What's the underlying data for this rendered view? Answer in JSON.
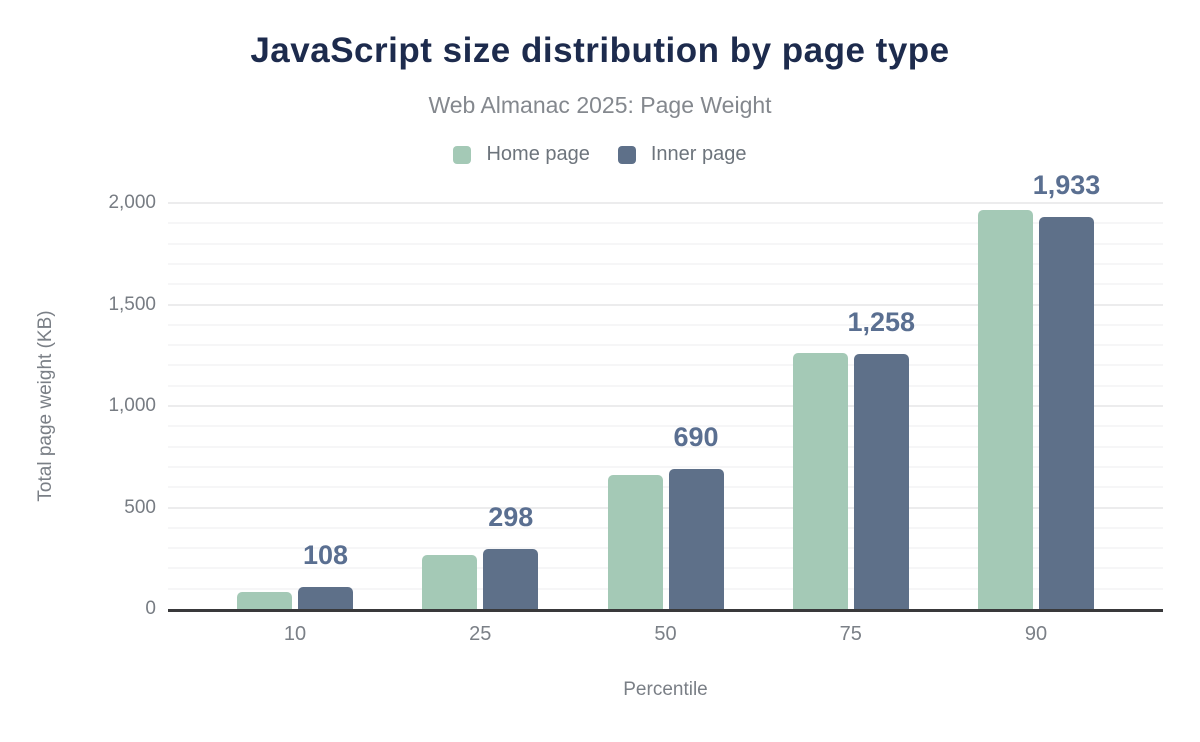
{
  "header": {
    "title": "JavaScript size distribution by page type",
    "subtitle": "Web Almanac 2025: Page Weight"
  },
  "legend": {
    "items": [
      {
        "label": "Home page",
        "color": "#a4c9b6"
      },
      {
        "label": "Inner page",
        "color": "#5e7089"
      }
    ]
  },
  "colors": {
    "title": "#1d2b4d",
    "subtitle": "#84888e",
    "home_bar": "#a4c9b6",
    "inner_bar": "#5e7089",
    "data_label": "#5a6f91",
    "axis_text": "#777c83",
    "baseline": "#39393b",
    "gridline_minor": "#f6f6f7",
    "gridline_major": "#ececed"
  },
  "chart_data": {
    "type": "bar",
    "title": "JavaScript size distribution by page type",
    "subtitle": "Web Almanac 2025: Page Weight",
    "categories": [
      "10",
      "25",
      "50",
      "75",
      "90"
    ],
    "series": [
      {
        "name": "Home page",
        "color": "#a4c9b6",
        "values": [
          84,
          265,
          660,
          1260,
          1965
        ],
        "data_labels_shown": false
      },
      {
        "name": "Inner page",
        "color": "#5e7089",
        "values": [
          108,
          298,
          690,
          1258,
          1933
        ],
        "data_labels_shown": true,
        "data_labels": [
          "108",
          "298",
          "690",
          "1,258",
          "1,933"
        ]
      }
    ],
    "xlabel": "Percentile",
    "ylabel": "Total page weight (KB)",
    "ylim": [
      0,
      2000
    ],
    "yticks": [
      0,
      500,
      1000,
      1500,
      2000
    ],
    "ytick_labels": [
      "0",
      "500",
      "1,000",
      "1,500",
      "2,000"
    ],
    "grid": "horizontal minor lines every 100 KB, major lines every 500 KB",
    "legend_position": "top center",
    "units": "KB"
  }
}
